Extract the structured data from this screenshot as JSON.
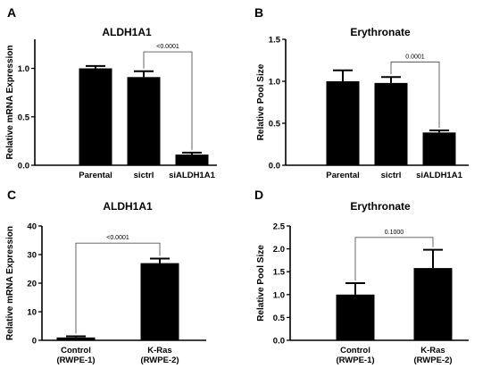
{
  "chart_data": [
    {
      "panel": "A",
      "type": "bar",
      "title": "ALDH1A1",
      "ylabel": "Relative mRNA Expression",
      "xlabel": "",
      "categories": [
        "Parental",
        "sictrl",
        "siALDH1A1"
      ],
      "values": [
        1.0,
        0.91,
        0.11
      ],
      "errors": [
        0.025,
        0.06,
        0.02
      ],
      "ylim": [
        0,
        1.3
      ],
      "yticks": [
        "0.0",
        "0.5",
        "1.0"
      ],
      "ytick_values": [
        0,
        0.5,
        1.0
      ],
      "bar_color": "#000000",
      "annotation": {
        "text": "<0.0001",
        "from": 1,
        "to": 2,
        "level": 1.17
      }
    },
    {
      "panel": "B",
      "type": "bar",
      "title": "Erythronate",
      "ylabel": "Relative Pool Size",
      "xlabel": "",
      "categories": [
        "Parental",
        "sictrl",
        "siALDH1A1"
      ],
      "values": [
        1.0,
        0.98,
        0.39
      ],
      "errors": [
        0.13,
        0.07,
        0.025
      ],
      "ylim": [
        0,
        1.5
      ],
      "yticks": [
        "0.0",
        "0.5",
        "1.0",
        "1.5"
      ],
      "ytick_values": [
        0,
        0.5,
        1.0,
        1.5
      ],
      "bar_color": "#000000",
      "annotation": {
        "text": "0.0001",
        "from": 1,
        "to": 2,
        "level": 1.23
      }
    },
    {
      "panel": "C",
      "type": "bar",
      "title": "ALDH1A1",
      "ylabel": "Relative mRNA Expression",
      "xlabel": "",
      "categories": [
        "Control\n(RWPE-1)",
        "K-Ras\n(RWPE-2)"
      ],
      "values": [
        1.0,
        27.0
      ],
      "errors": [
        0.4,
        1.6
      ],
      "ylim": [
        0,
        40
      ],
      "yticks": [
        "0",
        "10",
        "20",
        "30",
        "40"
      ],
      "ytick_values": [
        0,
        10,
        20,
        30,
        40
      ],
      "bar_color": "#000000",
      "annotation": {
        "text": "<0.0001",
        "from": 0,
        "to": 1,
        "level": 34
      }
    },
    {
      "panel": "D",
      "type": "bar",
      "title": "Erythronate",
      "ylabel": "Relative Pool Size",
      "xlabel": "",
      "categories": [
        "Control\n(RWPE-1)",
        "K-Ras\n(RWPE-2)"
      ],
      "values": [
        1.0,
        1.58
      ],
      "errors": [
        0.25,
        0.4
      ],
      "ylim": [
        0,
        2.5
      ],
      "yticks": [
        "0.0",
        "0.5",
        "1.0",
        "1.5",
        "2.0",
        "2.5"
      ],
      "ytick_values": [
        0,
        0.5,
        1.0,
        1.5,
        2.0,
        2.5
      ],
      "bar_color": "#000000",
      "annotation": {
        "text": "0.1000",
        "from": 0,
        "to": 1,
        "level": 2.25
      }
    }
  ]
}
